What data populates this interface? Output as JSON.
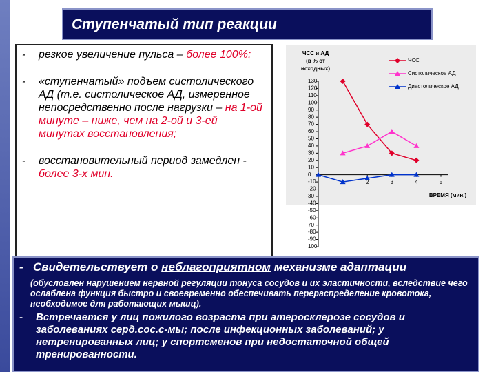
{
  "title": "Ступенчатый тип реакции",
  "bullets": [
    {
      "parts": [
        {
          "text": "резкое увеличение пульса – ",
          "red": false
        },
        {
          "text": "более 100%;",
          "red": true
        }
      ]
    },
    {
      "parts": [
        {
          "text": "«ступенчатый» подъем систолического АД (т.е. систолическое АД, измеренное непосредственно после нагрузки – ",
          "red": false
        },
        {
          "text": "на 1-ой минуте – ниже, чем на 2-ой и 3-ей минутах восстановления;",
          "red": true
        }
      ]
    },
    {
      "parts": [
        {
          "text": "восстановительный период замедлен - ",
          "red": false
        },
        {
          "text": "более 3-х мин.",
          "red": true
        }
      ]
    }
  ],
  "conclusion": {
    "line1": {
      "before": "Свидетельствует о ",
      "underlined": "неблагоприятном",
      "after": " механизме адаптации"
    },
    "note": "(обусловлен нарушением нервной регуляции тонуса сосудов и их эластичности, вследствие чего ослаблена функция быстро и своевременно обеспечивать перераспределение кровотока, необходимое для работающих мышц).",
    "line2": "Встречается у лиц пожилого возраста при атеросклерозе сосудов и заболеваниях серд.сос.с-мы; после инфекционных заболеваний; у нетренированных лиц; у спортсменов при недостаточной общей тренированности."
  },
  "chart_data": {
    "type": "line",
    "y_label": [
      "ЧСС и АД",
      "(в % от",
      "исходных)"
    ],
    "x_label": "ВРЕМЯ (мин.)",
    "x": [
      0,
      1,
      2,
      3,
      4
    ],
    "series": [
      {
        "name": "ЧСС",
        "color": "#e0002a",
        "marker": "diamond",
        "values": [
          null,
          130,
          70,
          30,
          20
        ]
      },
      {
        "name": "Систолическое АД",
        "color": "#ff33cc",
        "marker": "triangle",
        "values": [
          null,
          30,
          40,
          60,
          40
        ]
      },
      {
        "name": "Диастолическое АД",
        "color": "#0033cc",
        "marker": "triangle",
        "values": [
          0,
          -10,
          -5,
          0,
          0
        ]
      }
    ],
    "xlim": [
      0,
      5
    ],
    "xticks": [
      2,
      3,
      4,
      5
    ],
    "ylim": [
      -100,
      130
    ],
    "yticks": [
      130,
      120,
      110,
      100,
      90,
      80,
      70,
      60,
      50,
      40,
      30,
      20,
      10,
      0,
      -10,
      -20,
      {
        "value": -30,
        "label": "30"
      },
      -40,
      -50,
      -60,
      {
        "value": -70,
        "label": "70"
      },
      -80,
      -90,
      {
        "value": -100,
        "label": "100"
      }
    ],
    "legend": "upper right"
  }
}
